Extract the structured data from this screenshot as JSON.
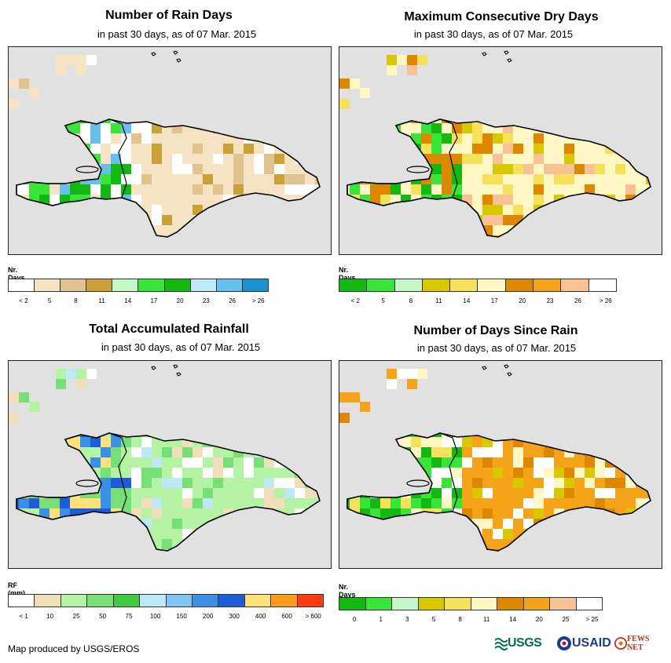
{
  "panels": [
    {
      "title": "Number of Rain Days",
      "subtitle": "in past 30 days, as of 07 Mar. 2015",
      "legend_title": "Nr. Days",
      "legend_colors": [
        "#ffffff",
        "#f5e3c3",
        "#e0c38e",
        "#c9a136",
        "#c6f7c6",
        "#3ae53a",
        "#13b813",
        "#bfe8f8",
        "#66c0ee",
        "#1a92d0"
      ],
      "legend_ticks": [
        "< 2",
        "5",
        "8",
        "11",
        "14",
        "17",
        "20",
        "23",
        "26",
        "> 26"
      ],
      "base_color": "#f5e3c3",
      "accent_colors": [
        "#ffffff",
        "#e0c38e",
        "#c9a136",
        "#ffffff"
      ],
      "haiti_colors": [
        "#ffffff",
        "#3ae53a",
        "#13b813",
        "#66c0ee",
        "#f5e3c3"
      ]
    },
    {
      "title": "Maximum Consecutive Dry Days",
      "subtitle": "in past 30 days, as of 07 Mar. 2015",
      "legend_title": "Nr. Days",
      "legend_colors": [
        "#13b813",
        "#3ae53a",
        "#c6f7c6",
        "#d9c800",
        "#f5e25a",
        "#fff8c4",
        "#de8700",
        "#f5a41a",
        "#f9c294",
        "#ffffff"
      ],
      "legend_ticks": [
        "< 2",
        "5",
        "8",
        "11",
        "14",
        "17",
        "20",
        "23",
        "26",
        "> 26"
      ],
      "base_color": "#fff8c4",
      "accent_colors": [
        "#f5e25a",
        "#de8700",
        "#d9c800",
        "#f9c294"
      ],
      "haiti_colors": [
        "#13b813",
        "#3ae53a",
        "#de8700",
        "#f5e25a",
        "#fff8c4"
      ]
    },
    {
      "title": "Total Accumulated Rainfall",
      "subtitle": "in past 30 days, as of 07 Mar. 2015",
      "legend_title": "RF (mm)",
      "legend_colors": [
        "#ffffff",
        "#f0dfb8",
        "#b4f2a4",
        "#76e076",
        "#3fca3f",
        "#bde9f7",
        "#7fc4f2",
        "#3a8fe6",
        "#1d5ed8",
        "#ffe17a",
        "#ff9b1a",
        "#ff3b0f"
      ],
      "legend_ticks": [
        "< 1",
        "10",
        "25",
        "50",
        "75",
        "100",
        "150",
        "200",
        "300",
        "400",
        "600",
        "> 600"
      ],
      "base_color": "#b4f2a4",
      "accent_colors": [
        "#76e076",
        "#f0dfb8",
        "#ffffff",
        "#bde9f7"
      ],
      "haiti_colors": [
        "#3a8fe6",
        "#1d5ed8",
        "#b4f2a4",
        "#ffe17a",
        "#76e076"
      ]
    },
    {
      "title": "Number of Days Since Rain",
      "subtitle": "in past 30 days, as of 07 Mar. 2015",
      "legend_title": "Nr. Days",
      "legend_colors": [
        "#13b813",
        "#3ae53a",
        "#c6f7c6",
        "#d9c800",
        "#f5e25a",
        "#fff8c4",
        "#de8700",
        "#f5a41a",
        "#f9c294",
        "#ffffff"
      ],
      "legend_ticks": [
        "0",
        "1",
        "3",
        "5",
        "8",
        "11",
        "14",
        "20",
        "25",
        "> 25"
      ],
      "base_color": "#f5a41a",
      "accent_colors": [
        "#de8700",
        "#fff8c4",
        "#ffffff",
        "#d9c800"
      ],
      "haiti_colors": [
        "#13b813",
        "#3ae53a",
        "#fff8c4",
        "#f5e25a",
        "#ffffff"
      ]
    }
  ],
  "credit": "Map produced by USGS/EROS",
  "logos": {
    "usgs": "USGS",
    "usaid": "USAID",
    "fews": "FEWS NET"
  }
}
